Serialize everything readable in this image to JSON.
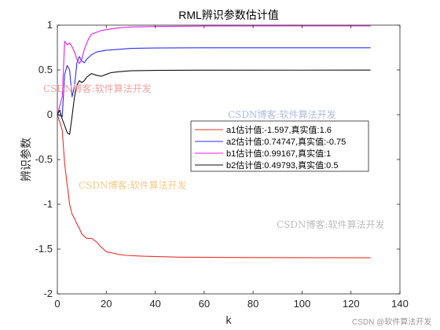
{
  "chart_data": {
    "type": "line",
    "title": "RML辨识参数估计值",
    "xlabel": "k",
    "ylabel": "辨识参数",
    "xlim": [
      0,
      140
    ],
    "ylim": [
      -2,
      1
    ],
    "xticks": [
      "0",
      "20",
      "40",
      "60",
      "80",
      "100",
      "120",
      "140"
    ],
    "yticks": [
      "1",
      "0.5",
      "0",
      "-0.5",
      "-1",
      "-1.5",
      "-2"
    ],
    "grid": false,
    "legend_placement": "center-right",
    "series": [
      {
        "name": "a1估计值:-1.597,真实值:1.6",
        "color": "#e8302e",
        "x": [
          0,
          2,
          3,
          4,
          5,
          6,
          7,
          8,
          9,
          10,
          11,
          12,
          14,
          16,
          18,
          20,
          22,
          25,
          28,
          35,
          50,
          80,
          128
        ],
        "y": [
          0,
          -0.17,
          -0.55,
          -0.78,
          -1.0,
          -1.11,
          -1.16,
          -1.22,
          -1.27,
          -1.33,
          -1.36,
          -1.38,
          -1.38,
          -1.42,
          -1.48,
          -1.53,
          -1.54,
          -1.56,
          -1.57,
          -1.58,
          -1.59,
          -1.595,
          -1.597
        ]
      },
      {
        "name": "a2估计值:0.74747,真实值:-0.75",
        "color": "#2f2ff0",
        "x": [
          0,
          2,
          3,
          4,
          5,
          6,
          7,
          8,
          9,
          10,
          11,
          12,
          14,
          16,
          20,
          25,
          30,
          40,
          60,
          128
        ],
        "y": [
          0,
          -0.02,
          0.45,
          0.55,
          0.5,
          0.2,
          0.32,
          0.58,
          0.65,
          0.6,
          0.58,
          0.62,
          0.67,
          0.7,
          0.72,
          0.73,
          0.74,
          0.745,
          0.747,
          0.747
        ]
      },
      {
        "name": "b1估计值:0.99167,真实值:1",
        "color": "#e41ee6",
        "x": [
          0,
          2,
          3,
          4,
          5,
          6,
          7,
          8,
          9,
          10,
          11,
          12,
          13,
          14,
          16,
          18,
          20,
          25,
          30,
          40,
          60,
          128
        ],
        "y": [
          0,
          0.2,
          0.82,
          0.78,
          0.8,
          0.76,
          0.7,
          0.62,
          0.57,
          0.62,
          0.73,
          0.8,
          0.86,
          0.9,
          0.92,
          0.94,
          0.95,
          0.97,
          0.98,
          0.985,
          0.99,
          0.992
        ]
      },
      {
        "name": "b2估计值:0.49793,真实值:0.5",
        "color": "#111111",
        "x": [
          0,
          1,
          2,
          3,
          4,
          5,
          6,
          7,
          8,
          9,
          10,
          11,
          12,
          14,
          16,
          18,
          20,
          22,
          25,
          30,
          40,
          60,
          128
        ],
        "y": [
          0,
          0.05,
          -0.05,
          -0.12,
          -0.2,
          -0.22,
          -0.02,
          0.2,
          0.33,
          0.38,
          0.36,
          0.38,
          0.42,
          0.46,
          0.44,
          0.43,
          0.45,
          0.47,
          0.48,
          0.49,
          0.495,
          0.497,
          0.498
        ]
      }
    ]
  },
  "watermarks": [
    "CSDN博客:软件算法开发",
    "CSDN博客:软件算法开发",
    "CSDN博客:软件算法开发",
    "CSDN博客:软件算法开发",
    "CSDN @软件算法开发"
  ]
}
